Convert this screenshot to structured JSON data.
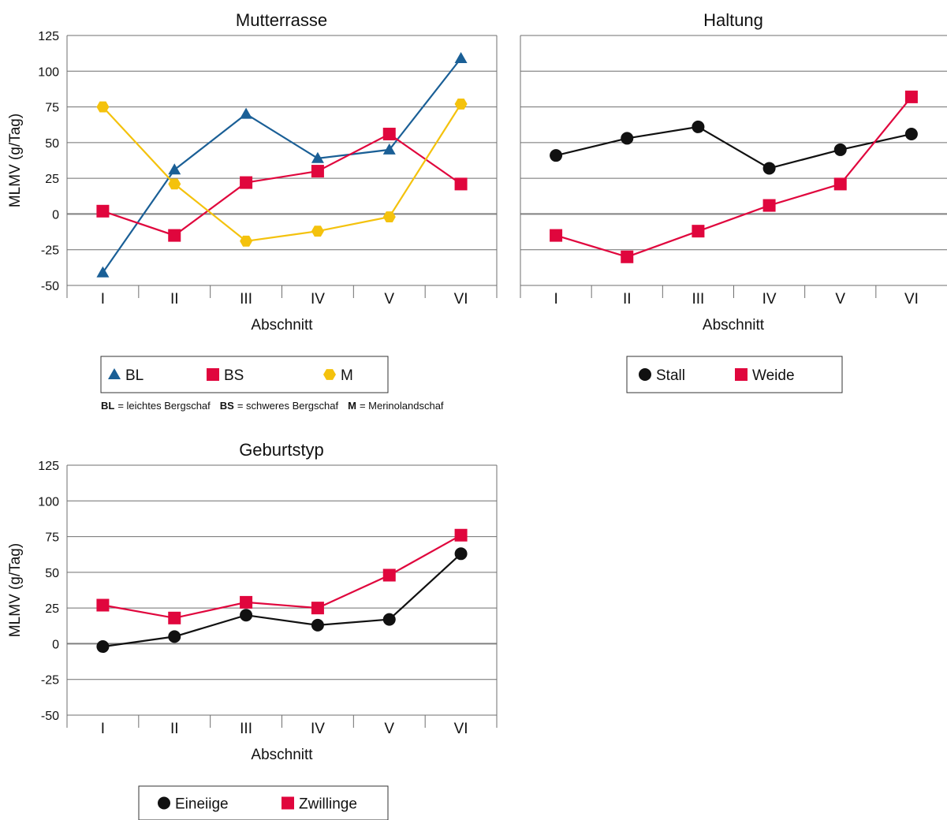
{
  "chart_data": [
    {
      "type": "line",
      "title": "Mutterrasse",
      "xlabel": "Abschnitt",
      "ylabel": "MLMV (g/Tag)",
      "categories": [
        "I",
        "II",
        "III",
        "IV",
        "V",
        "VI"
      ],
      "ylim": [
        -50,
        125
      ],
      "yticks": [
        "125",
        "100",
        "75",
        "50",
        "25",
        "0",
        "-25",
        "-50"
      ],
      "grid": true,
      "series": [
        {
          "name": "BL",
          "color": "#1a5f96",
          "marker": "triangle",
          "values": [
            -41,
            31,
            70,
            39,
            45,
            109
          ]
        },
        {
          "name": "BS",
          "color": "#e0063d",
          "marker": "square",
          "values": [
            2,
            -15,
            22,
            30,
            56,
            21
          ]
        },
        {
          "name": "M",
          "color": "#f4c20d",
          "marker": "hexagon",
          "values": [
            75,
            21,
            -19,
            -12,
            -2,
            77
          ]
        }
      ],
      "legend_position": "bottom-left",
      "legend_note": {
        "items": [
          {
            "abbr": "BL",
            "text": "= leichtes Bergschaf"
          },
          {
            "abbr": "BS",
            "text": "= schweres Bergschaf"
          },
          {
            "abbr": "M",
            "text": "= Merinolandschaf"
          }
        ]
      }
    },
    {
      "type": "line",
      "title": "Haltung",
      "xlabel": "Abschnitt",
      "ylabel": "",
      "categories": [
        "I",
        "II",
        "III",
        "IV",
        "V",
        "VI"
      ],
      "ylim": [
        -50,
        125
      ],
      "grid": true,
      "series": [
        {
          "name": "Stall",
          "color": "#111111",
          "marker": "circle",
          "values": [
            41,
            53,
            61,
            32,
            45,
            56
          ]
        },
        {
          "name": "Weide",
          "color": "#e0063d",
          "marker": "square",
          "values": [
            -15,
            -30,
            -12,
            6,
            21,
            82
          ]
        }
      ],
      "legend_position": "bottom-center"
    },
    {
      "type": "line",
      "title": "Geburtstyp",
      "xlabel": "Abschnitt",
      "ylabel": "MLMV (g/Tag)",
      "categories": [
        "I",
        "II",
        "III",
        "IV",
        "V",
        "VI"
      ],
      "ylim": [
        -50,
        125
      ],
      "yticks": [
        "125",
        "100",
        "75",
        "50",
        "25",
        "0",
        "-25",
        "-50"
      ],
      "grid": true,
      "series": [
        {
          "name": "Eineiige",
          "color": "#111111",
          "marker": "circle",
          "values": [
            -2,
            5,
            20,
            13,
            17,
            63
          ]
        },
        {
          "name": "Zwillinge",
          "color": "#e0063d",
          "marker": "square",
          "values": [
            27,
            18,
            29,
            25,
            48,
            76
          ]
        }
      ],
      "legend_position": "bottom-center"
    }
  ]
}
